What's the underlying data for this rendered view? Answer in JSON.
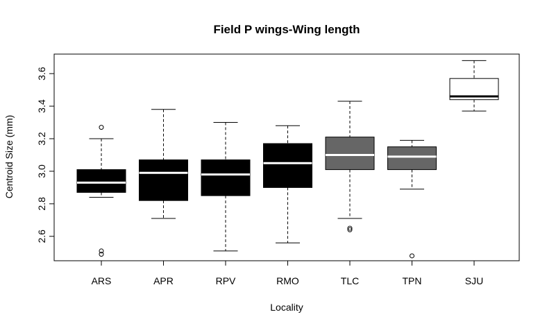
{
  "chart_data": {
    "type": "box",
    "title": "Field P wings-Wing length",
    "xlabel": "Locality",
    "ylabel": "Centroid Size (mm)",
    "ylim": [
      2.45,
      3.72
    ],
    "yticks": [
      2.6,
      2.8,
      3.0,
      3.2,
      3.4,
      3.6
    ],
    "ytick_labels": [
      "2.6",
      "2.8",
      "3.0",
      "3.2",
      "3.4",
      "3.6"
    ],
    "grid": false,
    "categories": [
      "ARS",
      "APR",
      "RPV",
      "RMO",
      "TLC",
      "TPN",
      "SJU"
    ],
    "boxes": [
      {
        "name": "ARS",
        "whisker_low": 2.84,
        "q1": 2.87,
        "median": 2.93,
        "q3": 3.01,
        "whisker_high": 3.2,
        "outliers": [
          3.27,
          2.51,
          2.49
        ],
        "fill": "#000000",
        "median_color": "#ffffff"
      },
      {
        "name": "APR",
        "whisker_low": 2.71,
        "q1": 2.82,
        "median": 2.99,
        "q3": 3.07,
        "whisker_high": 3.38,
        "outliers": [],
        "fill": "#000000",
        "median_color": "#ffffff"
      },
      {
        "name": "RPV",
        "whisker_low": 2.51,
        "q1": 2.85,
        "median": 2.98,
        "q3": 3.07,
        "whisker_high": 3.3,
        "outliers": [],
        "fill": "#000000",
        "median_color": "#ffffff"
      },
      {
        "name": "RMO",
        "whisker_low": 2.56,
        "q1": 2.9,
        "median": 3.05,
        "q3": 3.17,
        "whisker_high": 3.28,
        "outliers": [],
        "fill": "#000000",
        "median_color": "#ffffff"
      },
      {
        "name": "TLC",
        "whisker_low": 2.71,
        "q1": 3.01,
        "median": 3.1,
        "q3": 3.21,
        "whisker_high": 3.43,
        "outliers": [
          2.64,
          2.65
        ],
        "fill": "#666666",
        "median_color": "#ffffff"
      },
      {
        "name": "TPN",
        "whisker_low": 2.89,
        "q1": 3.01,
        "median": 3.09,
        "q3": 3.15,
        "whisker_high": 3.19,
        "outliers": [
          2.48
        ],
        "fill": "#666666",
        "median_color": "#ffffff"
      },
      {
        "name": "SJU",
        "whisker_low": 3.37,
        "q1": 3.44,
        "median": 3.46,
        "q3": 3.57,
        "whisker_high": 3.68,
        "outliers": [],
        "fill": "#ffffff",
        "median_color": "#000000"
      }
    ]
  }
}
